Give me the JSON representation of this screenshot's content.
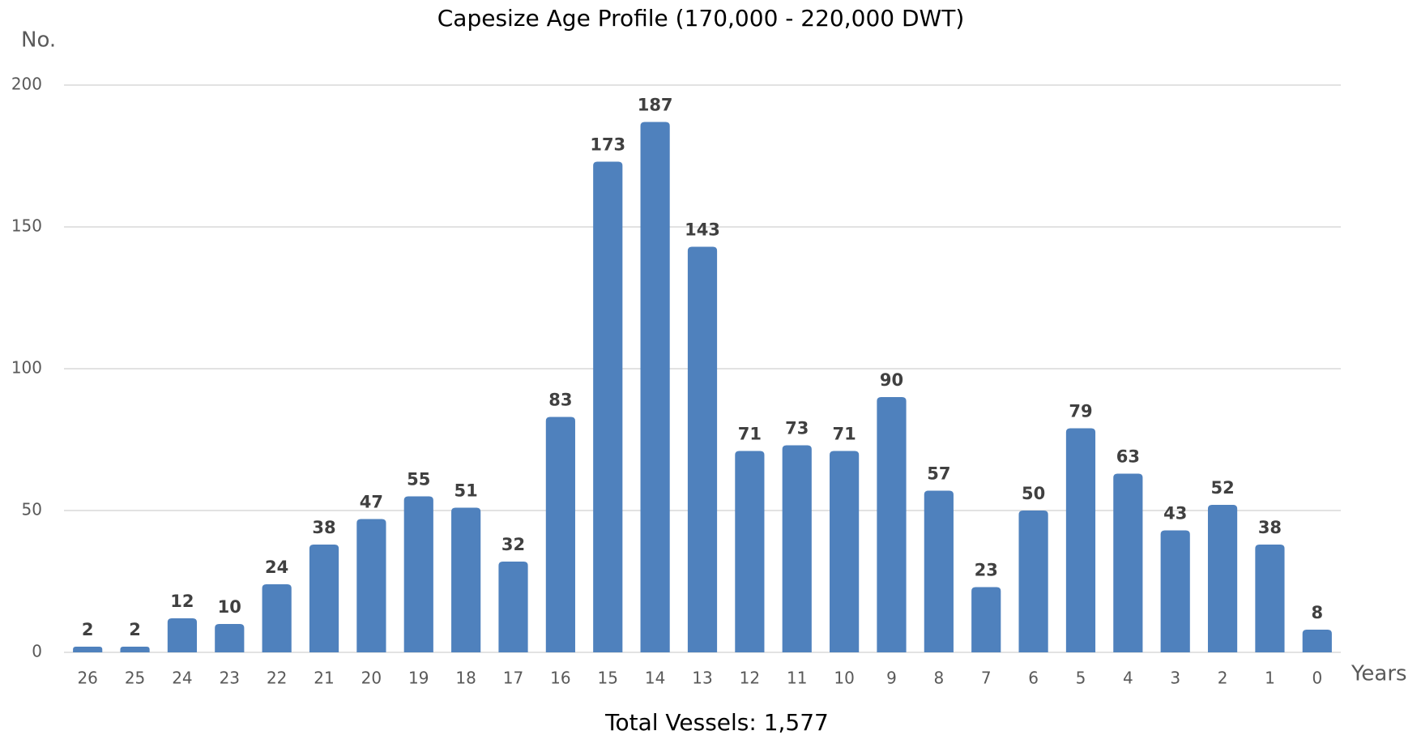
{
  "chart_data": {
    "type": "bar",
    "title": "Capesize Age Profile (170,000 - 220,000 DWT)",
    "y_label": "No.",
    "x_label": "Years",
    "annotation": "Total Vessels: 1,577",
    "categories": [
      "26",
      "25",
      "24",
      "23",
      "22",
      "21",
      "20",
      "19",
      "18",
      "17",
      "16",
      "15",
      "14",
      "13",
      "12",
      "11",
      "10",
      "9",
      "8",
      "7",
      "6",
      "5",
      "4",
      "3",
      "2",
      "1",
      "0"
    ],
    "values": [
      2,
      2,
      12,
      10,
      24,
      38,
      47,
      55,
      51,
      32,
      83,
      173,
      187,
      143,
      71,
      73,
      71,
      90,
      57,
      23,
      50,
      79,
      63,
      43,
      52,
      38,
      8
    ],
    "color": "#4f81bd",
    "ylim": [
      0,
      200
    ],
    "yticks": [
      0,
      50,
      100,
      150,
      200
    ],
    "grid": true
  }
}
